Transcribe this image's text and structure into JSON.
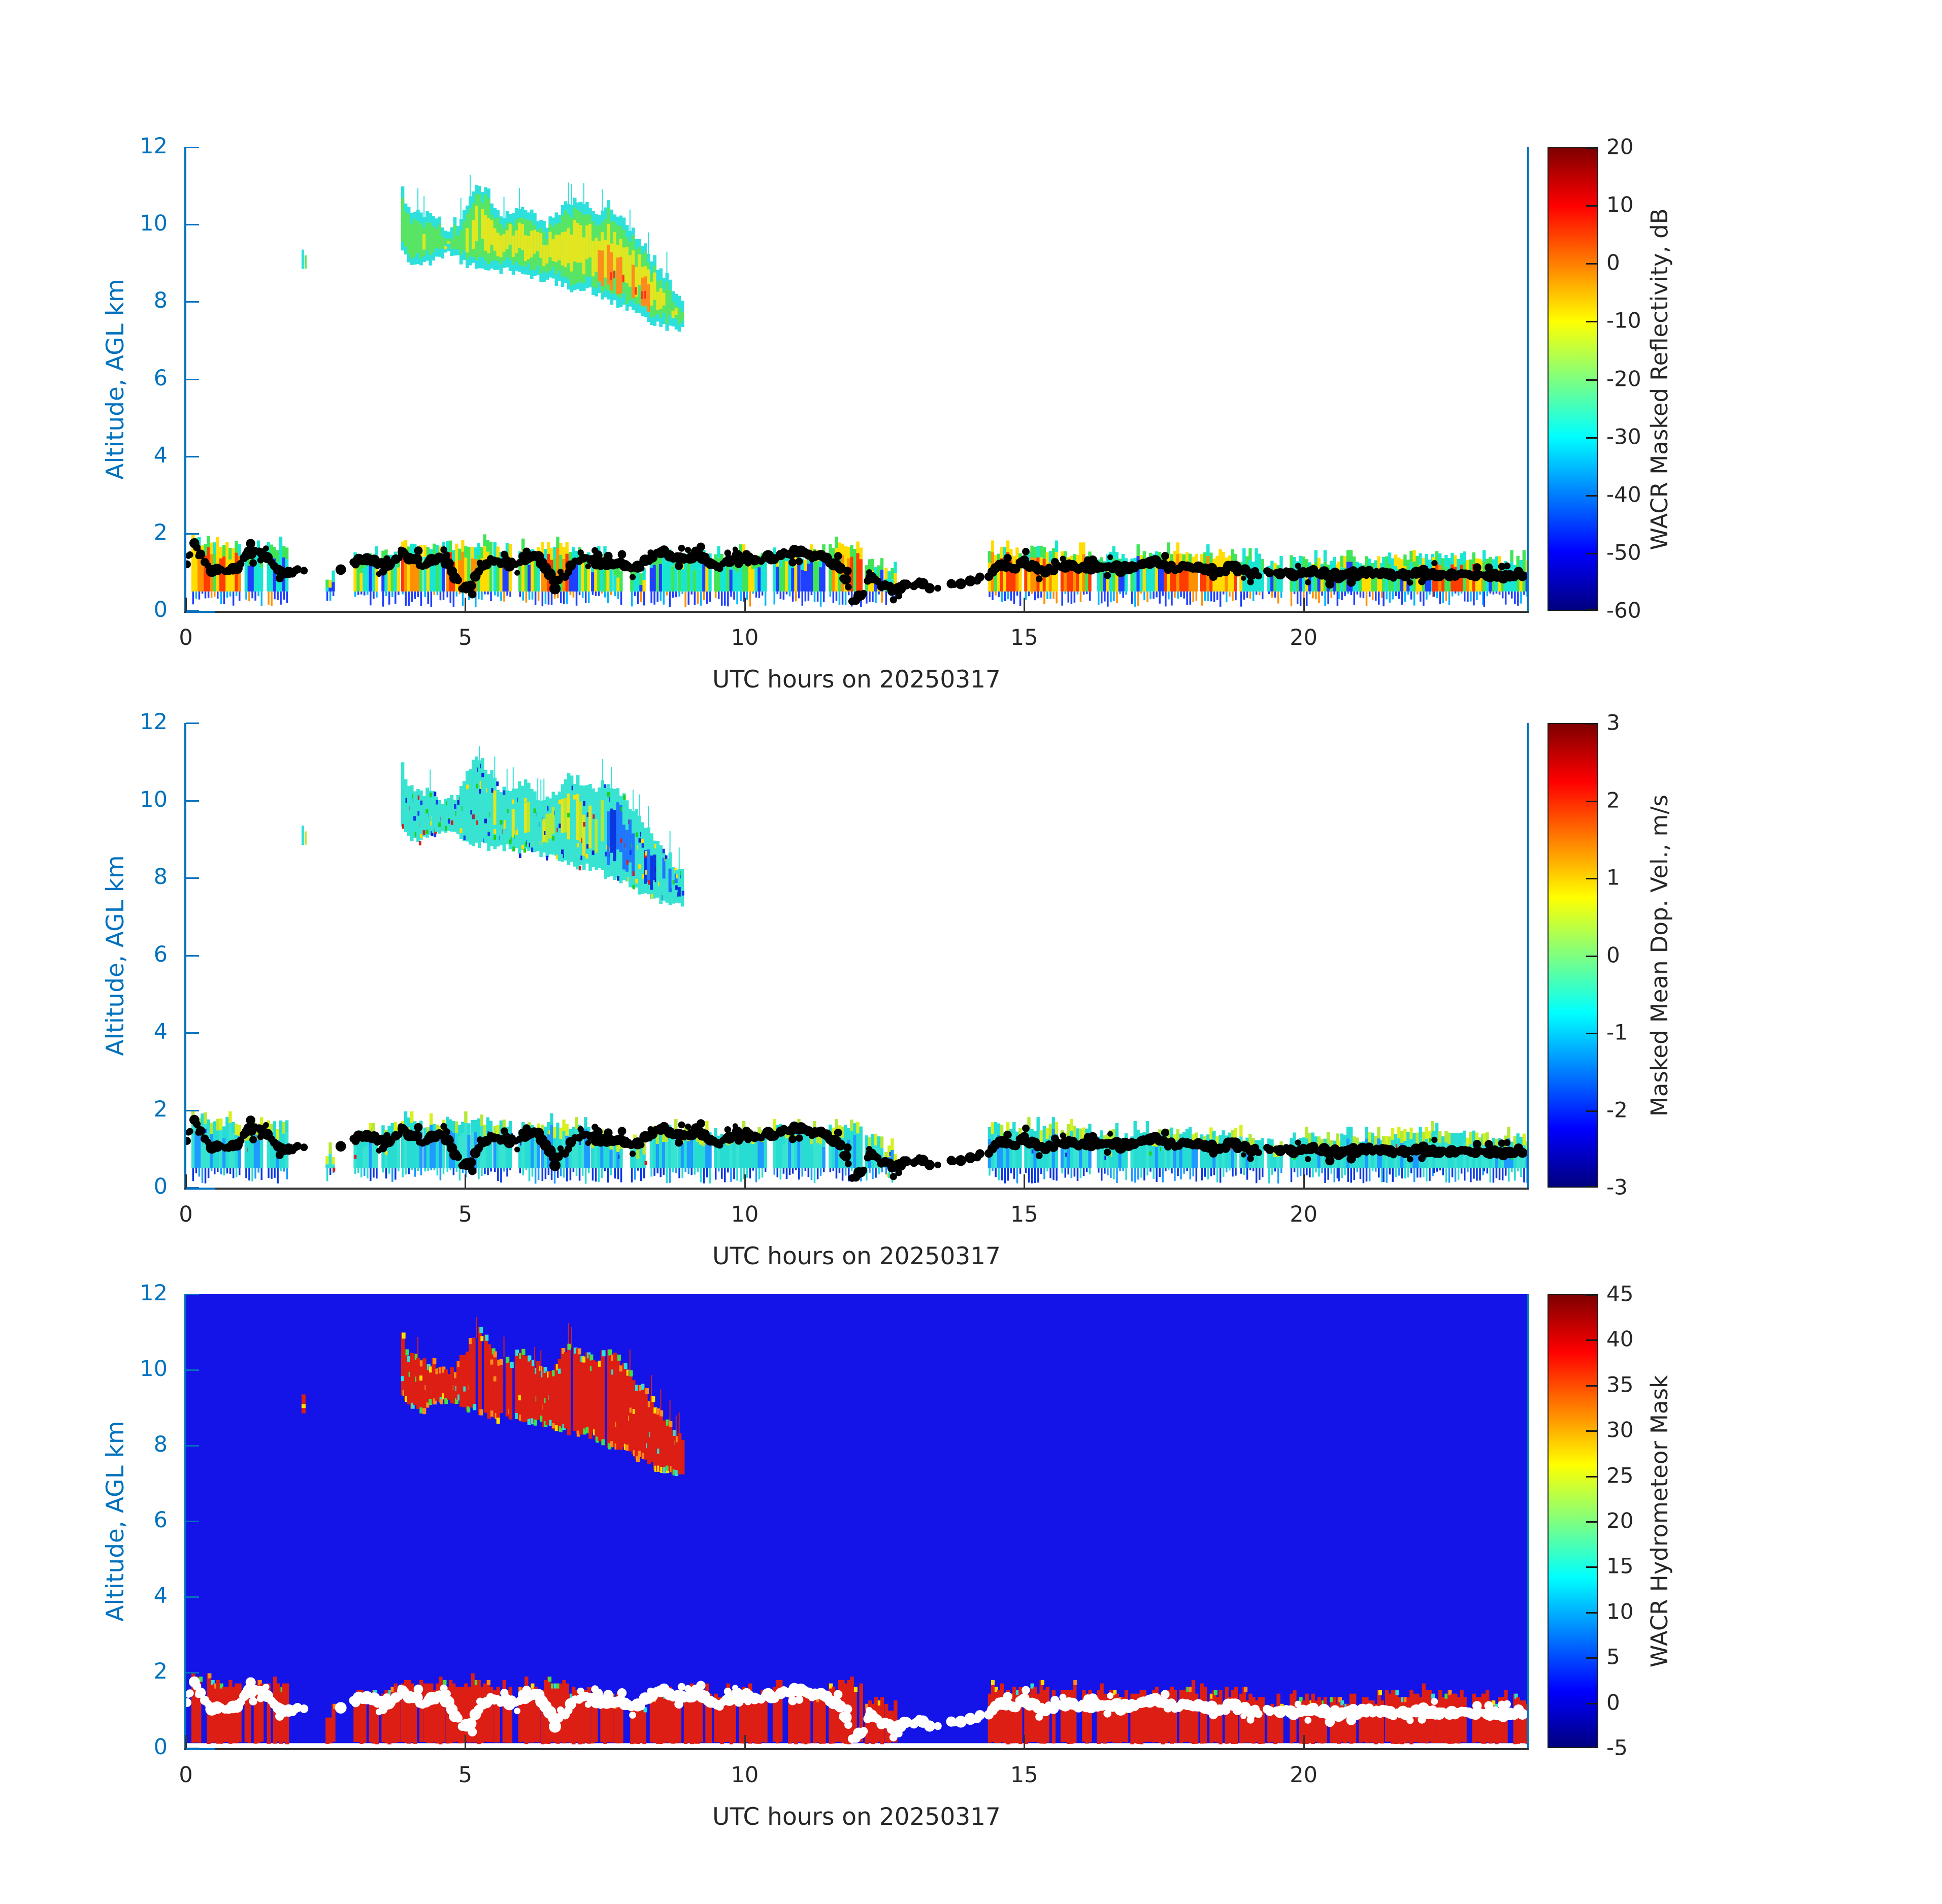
{
  "figure": {
    "background": "#ffffff"
  },
  "chart_data": {
    "type": "heatmap",
    "xlabel": "UTC hours on 20250317",
    "ylabel": "Altitude, AGL km",
    "x_ticks": [
      0,
      5,
      10,
      15,
      20
    ],
    "x_range": [
      0,
      24
    ],
    "y_ticks": [
      0,
      2,
      4,
      6,
      8,
      10,
      12
    ],
    "y_range": [
      0,
      12
    ],
    "grid": false,
    "panels": [
      {
        "name": "WACR Masked Reflectivity",
        "style": "reflectivity",
        "colorbar": {
          "label": "WACR Masked Reflectivity, dB",
          "ticks": [
            20,
            10,
            0,
            -10,
            -20,
            -30,
            -40,
            -50,
            -60
          ],
          "vmin": -60,
          "vmax": 20
        }
      },
      {
        "name": "Masked Mean Doppler Velocity",
        "style": "velocity",
        "colorbar": {
          "label": "Masked Mean Dop. Vel., m/s",
          "ticks": [
            3,
            2,
            1,
            0,
            -1,
            -2,
            -3
          ],
          "vmin": -3,
          "vmax": 3
        }
      },
      {
        "name": "WACR Hydrometeor Mask",
        "style": "mask",
        "colorbar": {
          "label": "WACR Hydrometeor Mask",
          "ticks": [
            45,
            40,
            35,
            30,
            25,
            20,
            15,
            10,
            5,
            0,
            -5
          ],
          "vmin": -5,
          "vmax": 45
        }
      }
    ],
    "cirrus_cloud_anchors": [
      [
        3.85,
        10.8,
        9.3
      ],
      [
        4.0,
        10.35,
        9.05
      ],
      [
        4.2,
        10.2,
        8.95
      ],
      [
        4.45,
        10.15,
        9.1
      ],
      [
        4.65,
        9.9,
        9.25
      ],
      [
        4.85,
        10.05,
        9.1
      ],
      [
        5.0,
        10.55,
        8.95
      ],
      [
        5.15,
        11.05,
        8.9
      ],
      [
        5.35,
        10.85,
        8.8
      ],
      [
        5.55,
        10.3,
        8.75
      ],
      [
        5.75,
        10.2,
        8.8
      ],
      [
        5.95,
        10.45,
        8.7
      ],
      [
        6.15,
        10.25,
        8.65
      ],
      [
        6.35,
        9.95,
        8.6
      ],
      [
        6.55,
        10.05,
        8.5
      ],
      [
        6.75,
        10.55,
        8.4
      ],
      [
        6.95,
        10.5,
        8.3
      ],
      [
        7.15,
        10.4,
        8.3
      ],
      [
        7.35,
        10.3,
        8.2
      ],
      [
        7.55,
        10.45,
        8.0
      ],
      [
        7.75,
        10.15,
        7.9
      ],
      [
        7.95,
        9.8,
        7.8
      ],
      [
        8.15,
        9.45,
        7.6
      ],
      [
        8.35,
        9.05,
        7.45
      ],
      [
        8.55,
        8.65,
        7.35
      ],
      [
        8.7,
        8.35,
        7.3
      ],
      [
        8.85,
        8.05,
        7.25
      ]
    ],
    "cirrus_speck": {
      "hour": 2.07,
      "top_km": 9.35,
      "bottom_km": 8.85
    },
    "low_cloud_segments": [
      [
        0.1,
        0.55,
        1.95,
        1
      ],
      [
        0.6,
        0.95,
        1.85,
        1
      ],
      [
        1.05,
        1.35,
        1.7,
        0
      ],
      [
        1.45,
        1.8,
        1.8,
        0
      ],
      [
        2.5,
        2.62,
        1.05,
        0
      ],
      [
        3.0,
        3.4,
        1.55,
        0
      ],
      [
        3.5,
        3.8,
        1.7,
        0
      ],
      [
        3.85,
        4.2,
        1.85,
        1
      ],
      [
        4.25,
        4.6,
        1.8,
        0
      ],
      [
        4.65,
        5.05,
        1.85,
        1
      ],
      [
        5.1,
        5.45,
        1.9,
        1
      ],
      [
        5.5,
        5.8,
        1.8,
        0
      ],
      [
        5.95,
        6.3,
        1.75,
        0
      ],
      [
        6.35,
        6.8,
        1.8,
        1
      ],
      [
        6.85,
        7.2,
        1.7,
        0
      ],
      [
        7.25,
        7.6,
        1.55,
        0
      ],
      [
        7.65,
        7.8,
        1.3,
        0
      ],
      [
        7.95,
        8.2,
        1.25,
        0
      ],
      [
        8.3,
        8.75,
        1.65,
        0
      ],
      [
        8.8,
        9.35,
        1.6,
        0
      ],
      [
        9.45,
        9.85,
        1.55,
        0
      ],
      [
        9.9,
        10.35,
        1.6,
        0
      ],
      [
        10.5,
        10.95,
        1.65,
        0
      ],
      [
        11.0,
        11.4,
        1.6,
        0
      ],
      [
        11.5,
        12.1,
        1.8,
        1
      ],
      [
        12.15,
        12.45,
        1.4,
        0
      ],
      [
        12.5,
        12.68,
        1.15,
        0
      ],
      [
        14.35,
        14.95,
        1.7,
        1
      ],
      [
        15.0,
        15.6,
        1.7,
        1
      ],
      [
        15.65,
        16.2,
        1.65,
        1
      ],
      [
        16.3,
        16.8,
        1.55,
        0
      ],
      [
        16.9,
        17.45,
        1.6,
        0
      ],
      [
        17.5,
        18.1,
        1.65,
        1
      ],
      [
        18.15,
        18.8,
        1.6,
        1
      ],
      [
        18.85,
        19.25,
        1.5,
        0
      ],
      [
        19.35,
        19.6,
        1.3,
        0
      ],
      [
        19.75,
        20.6,
        1.45,
        0
      ],
      [
        20.6,
        21.4,
        1.45,
        0
      ],
      [
        21.4,
        22.3,
        1.6,
        0
      ],
      [
        22.3,
        23.2,
        1.55,
        1
      ],
      [
        23.2,
        24.0,
        1.45,
        0
      ]
    ],
    "cloud_base_track": [
      [
        0,
        1.2
      ],
      [
        0.15,
        1.68
      ],
      [
        0.3,
        1.42
      ],
      [
        0.45,
        1.05
      ],
      [
        0.6,
        1.18
      ],
      [
        0.78,
        0.96
      ],
      [
        0.95,
        1.12
      ],
      [
        1.1,
        1.45
      ],
      [
        1.3,
        1.52
      ],
      [
        1.5,
        1.28
      ],
      [
        1.7,
        1.0
      ],
      [
        1.95,
        1.05
      ],
      [
        2.2,
        1.04
      ],
      [
        2.6,
        1.0
      ],
      [
        3.0,
        1.22
      ],
      [
        3.2,
        1.38
      ],
      [
        3.45,
        1.15
      ],
      [
        3.65,
        1.22
      ],
      [
        3.85,
        1.48
      ],
      [
        4.05,
        1.32
      ],
      [
        4.25,
        1.18
      ],
      [
        4.45,
        1.35
      ],
      [
        4.65,
        1.28
      ],
      [
        4.8,
        0.95
      ],
      [
        4.95,
        0.5
      ],
      [
        5.1,
        0.72
      ],
      [
        5.25,
        1.05
      ],
      [
        5.45,
        1.32
      ],
      [
        5.65,
        1.25
      ],
      [
        5.85,
        1.22
      ],
      [
        6.05,
        1.38
      ],
      [
        6.25,
        1.48
      ],
      [
        6.45,
        1.05
      ],
      [
        6.6,
        0.62
      ],
      [
        6.75,
        0.9
      ],
      [
        6.95,
        1.22
      ],
      [
        7.15,
        1.32
      ],
      [
        7.35,
        1.26
      ],
      [
        7.55,
        1.16
      ],
      [
        7.75,
        1.2
      ],
      [
        7.95,
        1.1
      ],
      [
        8.15,
        1.18
      ],
      [
        8.35,
        1.38
      ],
      [
        8.55,
        1.52
      ],
      [
        8.75,
        1.36
      ],
      [
        8.95,
        1.3
      ],
      [
        9.15,
        1.55
      ],
      [
        9.35,
        1.28
      ],
      [
        9.55,
        1.15
      ],
      [
        9.75,
        1.3
      ],
      [
        9.95,
        1.42
      ],
      [
        10.2,
        1.3
      ],
      [
        10.45,
        1.36
      ],
      [
        10.7,
        1.56
      ],
      [
        10.95,
        1.5
      ],
      [
        11.2,
        1.42
      ],
      [
        11.45,
        1.38
      ],
      [
        11.65,
        1.22
      ],
      [
        11.82,
        0.75
      ],
      [
        11.95,
        0.2
      ],
      [
        12.1,
        0.45
      ],
      [
        12.25,
        0.82
      ],
      [
        12.45,
        0.68
      ],
      [
        12.65,
        0.56
      ],
      [
        12.9,
        0.68
      ],
      [
        13.15,
        0.72
      ],
      [
        13.4,
        0.6
      ],
      [
        13.7,
        0.66
      ],
      [
        13.95,
        0.72
      ],
      [
        14.2,
        0.8
      ],
      [
        14.4,
        0.95
      ],
      [
        14.6,
        1.18
      ],
      [
        14.8,
        1.1
      ],
      [
        15.0,
        1.26
      ],
      [
        15.25,
        1.1
      ],
      [
        15.5,
        1.06
      ],
      [
        15.75,
        1.2
      ],
      [
        16.0,
        1.12
      ],
      [
        16.25,
        1.18
      ],
      [
        16.5,
        1.1
      ],
      [
        16.75,
        1.06
      ],
      [
        17.0,
        1.12
      ],
      [
        17.25,
        1.26
      ],
      [
        17.5,
        1.16
      ],
      [
        17.75,
        1.06
      ],
      [
        18.0,
        1.16
      ],
      [
        18.25,
        1.0
      ],
      [
        18.5,
        1.06
      ],
      [
        18.75,
        1.12
      ],
      [
        19.0,
        1.02
      ],
      [
        19.3,
        0.96
      ],
      [
        19.6,
        1.02
      ],
      [
        19.9,
        0.96
      ],
      [
        20.2,
        1.0
      ],
      [
        20.5,
        0.92
      ],
      [
        20.8,
        0.97
      ],
      [
        21.1,
        1.0
      ],
      [
        21.4,
        0.95
      ],
      [
        21.7,
        0.9
      ],
      [
        22.0,
        0.96
      ],
      [
        22.3,
        1.0
      ],
      [
        22.6,
        0.95
      ],
      [
        22.9,
        0.9
      ],
      [
        23.2,
        0.96
      ],
      [
        23.5,
        0.9
      ],
      [
        23.8,
        0.94
      ],
      [
        24,
        0.95
      ]
    ],
    "sparse_dot_zones": [
      [
        2.05,
        2.95,
        0.7
      ],
      [
        12.6,
        14.35,
        0.45
      ],
      [
        19.25,
        19.75,
        0.45
      ]
    ],
    "colors": {
      "axis_blue": "#0072BD",
      "axis_dark": "#333333",
      "tick_text_dark": "#262626",
      "jet_stops": [
        [
          0,
          "#00007f"
        ],
        [
          0.125,
          "#0000ff"
        ],
        [
          0.25,
          "#007fff"
        ],
        [
          0.375,
          "#00ffff"
        ],
        [
          0.5,
          "#7fff7f"
        ],
        [
          0.625,
          "#ffff00"
        ],
        [
          0.75,
          "#ff7f00"
        ],
        [
          0.875,
          "#ff0000"
        ],
        [
          1,
          "#7f0000"
        ]
      ],
      "mask_blue": "#1414e8",
      "mask_red": "#dc1e14",
      "dot_black": "#000000",
      "dot_white": "#ffffff",
      "cirrus_edge": "#2ee0dc",
      "cirrus_mid": "#58e564",
      "cirrus_core": "#e2e620",
      "cirrus_hot": "#ff8b1e",
      "cirrus_red": "#ff3518",
      "vel_cloud_base": "#38e3d2",
      "vel_cloud_green": "#b4e836",
      "vel_cloud_blue": "#1f76ff",
      "vel_cloud_deep": "#0837e0",
      "speckle": [
        "#d91e1c",
        "#0a21d8",
        "#ffdf00",
        "#103ce8",
        "#1fd014"
      ],
      "mask_edge_speckle": [
        "#ffdf00",
        "#ff8b1e",
        "#3ee04c",
        "#2ee0dc"
      ],
      "refl_top_cool": [
        "#3fe556",
        "#19e6d2",
        "#ffdd00"
      ],
      "refl_top_hot": [
        "#ffdd00",
        "#3fe556",
        "#19e6d2"
      ],
      "refl_mid_cool": [
        "#19e6d2",
        "#3fe556",
        "#ffdd00",
        "#2040ff"
      ],
      "refl_mid_hot": [
        "#ff3c00",
        "#ff9000",
        "#ffdd00",
        "#3fe556"
      ],
      "refl_bot": [
        "#2040ff",
        "#00b4ff",
        "#ff9000"
      ],
      "vel_top": [
        "#b4e836",
        "#d7f01e",
        "#27dcd2"
      ],
      "vel_mid": [
        "#27dcd2",
        "#38e3d2",
        "#1e9bff"
      ],
      "vel_bot": [
        "#0837e0",
        "#1e9bff",
        "#27dcd2"
      ]
    }
  }
}
